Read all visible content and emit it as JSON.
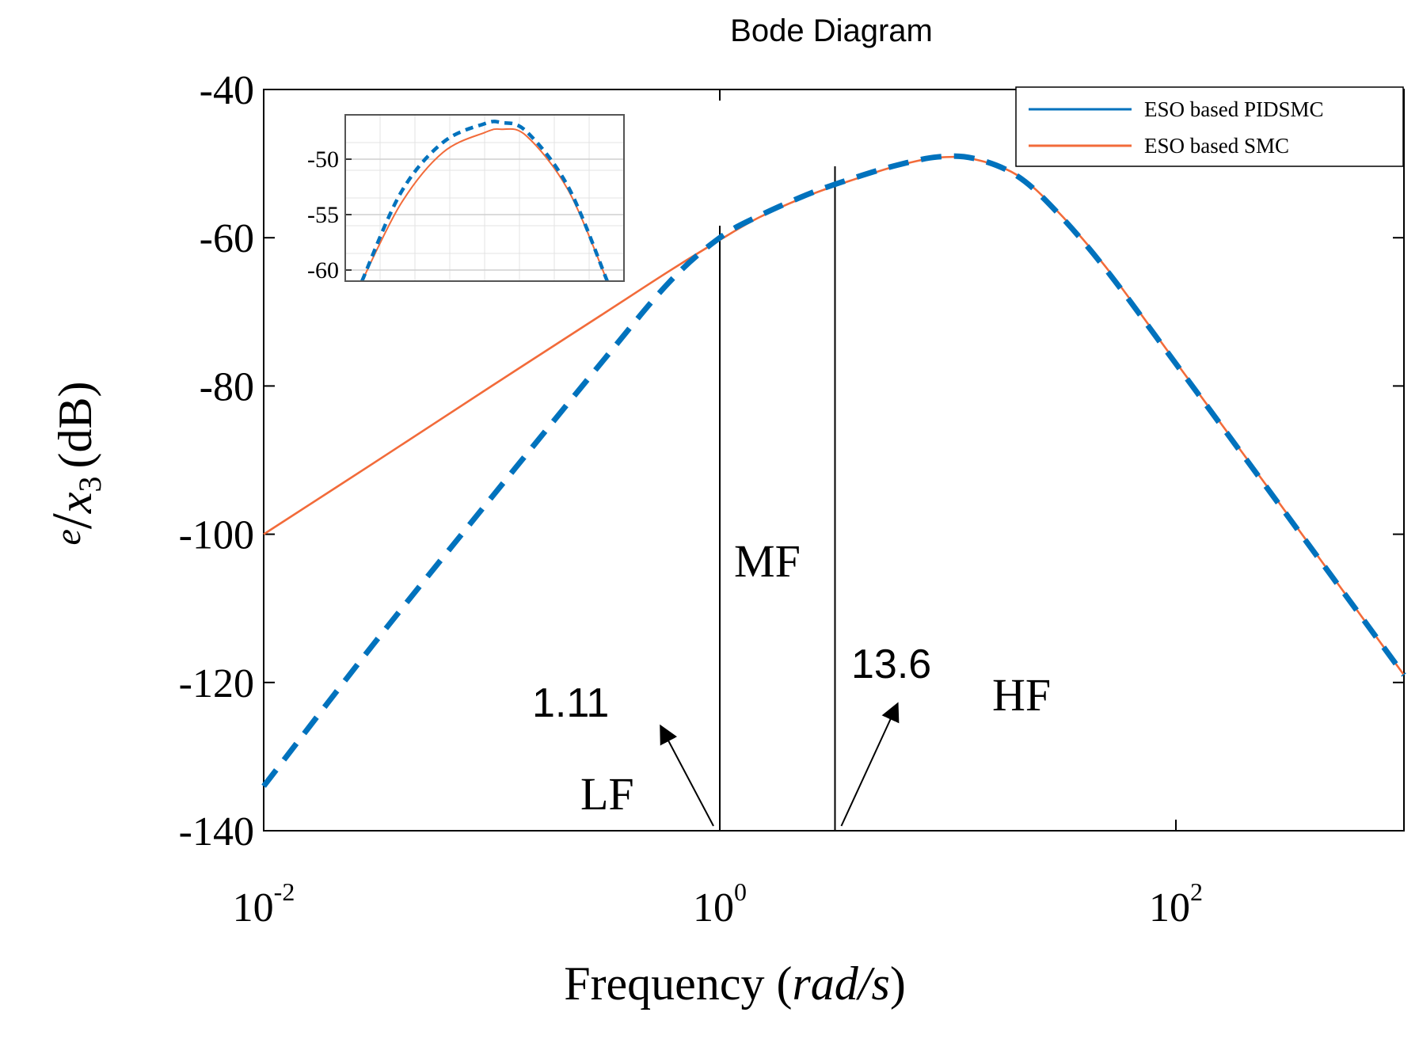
{
  "chart_data": {
    "type": "line",
    "title": "Bode Diagram",
    "xlabel": "Frequency (rad/s)",
    "xlabel_parts": {
      "word": "Frequency",
      "open": "(",
      "unit": "rad/s",
      "close": ")"
    },
    "ylabel": "e/x3 (dB)",
    "ylabel_parts": {
      "num": "e",
      "slash": "/",
      "var": "x",
      "sub": "3",
      "unit": "(dB)"
    },
    "x_scale": "log",
    "xlim": [
      0.01,
      1000
    ],
    "ylim": [
      -140,
      -40
    ],
    "yticks": [
      -140,
      -120,
      -100,
      -80,
      -60,
      -40
    ],
    "ytick_labels": [
      "-140",
      "-120",
      "-100",
      "-80",
      "-60",
      "-40"
    ],
    "xticks": [
      0.01,
      1,
      100
    ],
    "xtick_labels": [
      {
        "base": "10",
        "exp": "-2"
      },
      {
        "base": "10",
        "exp": "0"
      },
      {
        "base": "10",
        "exp": "2"
      }
    ],
    "series": [
      {
        "name": "ESO based PIDSMC",
        "color": "#0072BD",
        "style": "dashed",
        "x": [
          0.01,
          0.03,
          0.1,
          0.3,
          0.6,
          1.0,
          1.5,
          2.5,
          4.0,
          6.0,
          9.0,
          13.0,
          20.0,
          30.0,
          50.0,
          100.0,
          300.0,
          1000.0
        ],
        "y": [
          -134,
          -115,
          -95,
          -77,
          -66,
          -60,
          -57,
          -54,
          -51.8,
          -50.2,
          -49.1,
          -49.3,
          -51.6,
          -56.5,
          -64.5,
          -77,
          -97,
          -119
        ]
      },
      {
        "name": "ESO based SMC",
        "color": "#F26B3A",
        "style": "solid",
        "x": [
          0.01,
          0.03,
          0.1,
          0.3,
          0.6,
          1.0,
          1.5,
          2.5,
          4.0,
          6.0,
          9.0,
          13.0,
          20.0,
          30.0,
          50.0,
          100.0,
          300.0,
          1000.0
        ],
        "y": [
          -100,
          -90.5,
          -80,
          -70.5,
          -64.5,
          -60.3,
          -57.2,
          -54.2,
          -52,
          -50.3,
          -49.2,
          -49.4,
          -51.5,
          -56.3,
          -64.2,
          -76.8,
          -96.8,
          -119
        ]
      }
    ],
    "vertical_lines": [
      1.0,
      3.2
    ],
    "region_labels": [
      "LF",
      "MF",
      "HF"
    ],
    "annotations": [
      {
        "text": "1.11",
        "arrow_to_x": 1.0
      },
      {
        "text": "13.6",
        "arrow_to_x": 3.2
      }
    ],
    "legend": {
      "position": "top-right",
      "entries": [
        "ESO based PIDSMC",
        "ESO based SMC"
      ]
    },
    "inset": {
      "ylim": [
        -61,
        -46
      ],
      "yticks": [
        -50,
        -55,
        -60
      ],
      "ytick_labels": [
        "-50",
        "-55",
        "-60"
      ],
      "grid": true,
      "series": [
        {
          "name": "ESO based PIDSMC",
          "t": [
            0.06,
            0.2,
            0.35,
            0.5,
            0.56,
            0.65,
            0.8,
            0.94
          ],
          "y": [
            -61,
            -53,
            -48.5,
            -46.8,
            -46.7,
            -47.5,
            -52.5,
            -61
          ]
        },
        {
          "name": "ESO based SMC",
          "t": [
            0.06,
            0.2,
            0.35,
            0.5,
            0.56,
            0.65,
            0.8,
            0.94
          ],
          "y": [
            -61,
            -54,
            -49.4,
            -47.6,
            -47.3,
            -47.9,
            -52.8,
            -61
          ]
        }
      ]
    }
  }
}
